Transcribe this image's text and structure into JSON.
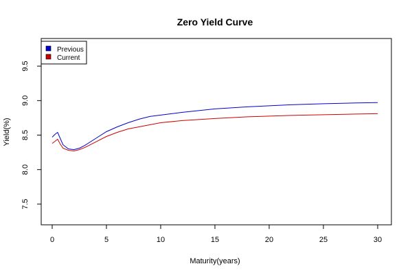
{
  "chart_data": {
    "type": "line",
    "title": "Zero Yield Curve",
    "xlabel": "Maturity(years)",
    "ylabel": "Yield(%)",
    "xlim": [
      0,
      30
    ],
    "ylim": [
      7.2,
      9.9
    ],
    "xticks": [
      0,
      5,
      10,
      15,
      20,
      25,
      30
    ],
    "yticks": [
      7.5,
      8.0,
      8.5,
      9.0,
      9.5
    ],
    "grid": false,
    "legend_position": "top-left",
    "series": [
      {
        "name": "Previous",
        "color": "#0000CD",
        "x": [
          0,
          0.25,
          0.5,
          0.75,
          1,
          1.5,
          2,
          2.5,
          3,
          4,
          5,
          6,
          7,
          8,
          9,
          10,
          12,
          15,
          18,
          20,
          22,
          25,
          28,
          30
        ],
        "y": [
          8.47,
          8.51,
          8.54,
          8.45,
          8.36,
          8.3,
          8.29,
          8.31,
          8.35,
          8.45,
          8.55,
          8.62,
          8.68,
          8.73,
          8.77,
          8.79,
          8.83,
          8.88,
          8.91,
          8.925,
          8.94,
          8.955,
          8.965,
          8.97
        ]
      },
      {
        "name": "Current",
        "color": "#CC0000",
        "x": [
          0,
          0.25,
          0.5,
          0.75,
          1,
          1.5,
          2,
          2.5,
          3,
          4,
          5,
          6,
          7,
          8,
          9,
          10,
          12,
          15,
          18,
          20,
          22,
          25,
          28,
          30
        ],
        "y": [
          8.38,
          8.41,
          8.44,
          8.37,
          8.31,
          8.28,
          8.27,
          8.29,
          8.32,
          8.4,
          8.48,
          8.54,
          8.59,
          8.62,
          8.65,
          8.68,
          8.71,
          8.74,
          8.765,
          8.775,
          8.785,
          8.795,
          8.805,
          8.81
        ]
      }
    ]
  }
}
